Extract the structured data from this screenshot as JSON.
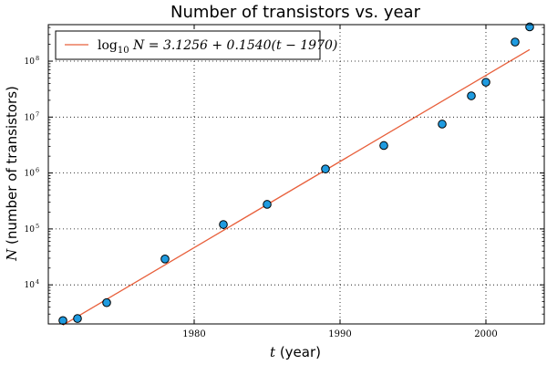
{
  "chart_data": {
    "type": "scatter",
    "title": "Number of transistors vs. year",
    "xlabel": {
      "var": "t",
      "rest": " (year)"
    },
    "ylabel": {
      "var": "N",
      "rest": " (number of transistors)"
    },
    "xlim": [
      1970,
      2004
    ],
    "ylim": [
      2000,
      450000000
    ],
    "yscale": "log",
    "xticks": [
      1980,
      1990,
      2000
    ],
    "xtick_labels": [
      "1980",
      "1990",
      "2000"
    ],
    "yticks": [
      10000,
      100000,
      1000000,
      10000000,
      100000000
    ],
    "ytick_labels": [
      {
        "base": "10",
        "exp": "4"
      },
      {
        "base": "10",
        "exp": "5"
      },
      {
        "base": "10",
        "exp": "6"
      },
      {
        "base": "10",
        "exp": "7"
      },
      {
        "base": "10",
        "exp": "8"
      }
    ],
    "grid": true,
    "legend_position": "top-left",
    "series": [
      {
        "type": "scatter",
        "color": "#1f9be0",
        "points": [
          {
            "x": 1971,
            "y": 2300
          },
          {
            "x": 1972,
            "y": 2500
          },
          {
            "x": 1974,
            "y": 4800
          },
          {
            "x": 1978,
            "y": 29000
          },
          {
            "x": 1982,
            "y": 120000
          },
          {
            "x": 1985,
            "y": 275000
          },
          {
            "x": 1989,
            "y": 1180000
          },
          {
            "x": 1993,
            "y": 3100000
          },
          {
            "x": 1997,
            "y": 7500000
          },
          {
            "x": 1999,
            "y": 24000000
          },
          {
            "x": 2000,
            "y": 42000000
          },
          {
            "x": 2002,
            "y": 220000000
          },
          {
            "x": 2003,
            "y": 410000000
          }
        ]
      },
      {
        "type": "line",
        "name": "log10 N = 3.1256 + 0.1540(t - 1970)",
        "legend_label": {
          "log": "log",
          "sub": "10",
          "eq": " N = 3.1256 + 0.1540(t − 1970)"
        },
        "color": "#e8603c",
        "intercept": 3.1256,
        "slope": 0.154,
        "x0": 1970,
        "x_range": [
          1971,
          2003
        ]
      }
    ]
  }
}
